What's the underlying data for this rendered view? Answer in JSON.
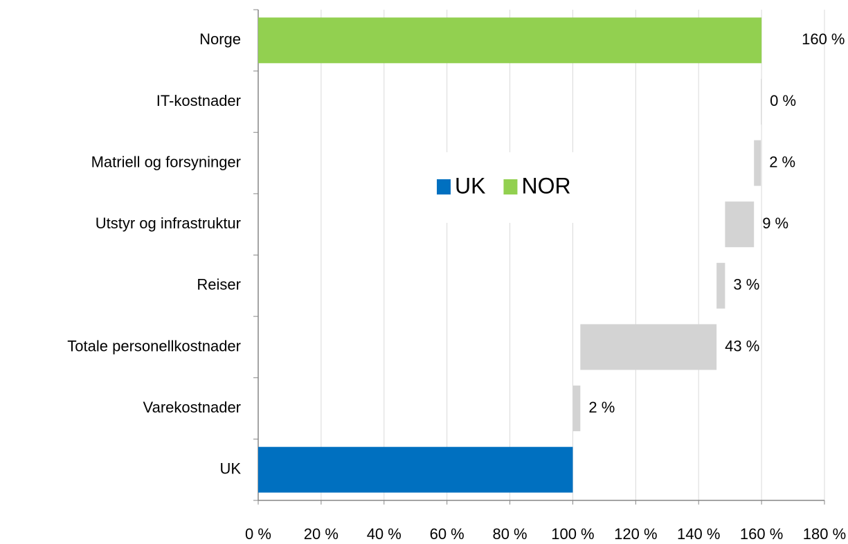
{
  "chart_data": {
    "type": "waterfall",
    "orientation": "horizontal",
    "categories": [
      "Norge",
      "IT-kostnader",
      "Matriell og forsyninger",
      "Utstyr og infrastruktur",
      "Reiser",
      "Totale personellkostnader",
      "Varekostnader",
      "UK"
    ],
    "values": [
      160,
      0.2,
      2.2,
      9.2,
      2.7,
      43.3,
      2.4,
      100
    ],
    "value_labels": [
      "160 %",
      "0 %",
      "2 %",
      "9 %",
      "3 %",
      "43 %",
      "2 %",
      null
    ],
    "colors": [
      "#92d050",
      "#d3d3d3",
      "#d3d3d3",
      "#d3d3d3",
      "#d3d3d3",
      "#d3d3d3",
      "#d3d3d3",
      "#0070c0"
    ],
    "legend": [
      {
        "name": "UK",
        "color": "#0070c0"
      },
      {
        "name": "NOR",
        "color": "#92d050"
      }
    ],
    "legend_position": "center",
    "xlim": [
      0,
      180
    ],
    "xticks": [
      {
        "value": 0,
        "label": "0 %"
      },
      {
        "value": 20,
        "label": "20 %"
      },
      {
        "value": 40,
        "label": "40 %"
      },
      {
        "value": 60,
        "label": "60 %"
      },
      {
        "value": 80,
        "label": "80 %"
      },
      {
        "value": 100,
        "label": "100 %"
      },
      {
        "value": 120,
        "label": "120 %"
      },
      {
        "value": 140,
        "label": "140 %"
      },
      {
        "value": 160,
        "label": "160 %"
      },
      {
        "value": 180,
        "label": "180 %"
      }
    ],
    "grid": true
  }
}
